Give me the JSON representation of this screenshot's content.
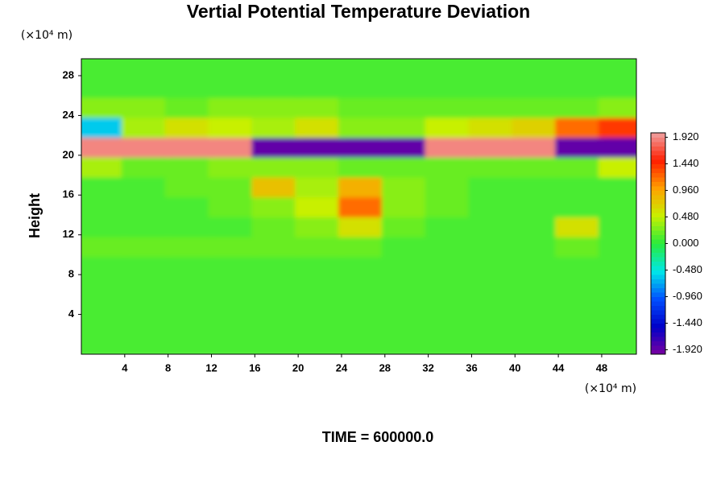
{
  "chart_data": {
    "type": "heatmap",
    "title": "Vertial Potential Temperature Deviation",
    "ylabel": "Height",
    "xunit": "(×10⁴ m)",
    "yunit": "(×10⁴ m)",
    "footer": "TIME = 600000.0",
    "xlim": [
      0,
      51.2
    ],
    "xticks": [
      4,
      8,
      12,
      16,
      20,
      24,
      28,
      32,
      36,
      40,
      44,
      48
    ],
    "ylim": [
      0,
      29.7
    ],
    "yticks": [
      4,
      8,
      12,
      16,
      20,
      24,
      28
    ],
    "x": [
      2,
      6,
      10,
      14,
      18,
      22,
      26,
      30,
      34,
      38,
      42,
      46,
      50
    ],
    "y": [
      1,
      3,
      5,
      7,
      9,
      11,
      13,
      15,
      17,
      19,
      21,
      23,
      25,
      27,
      29
    ],
    "z": [
      [
        0.1,
        0.1,
        0.1,
        0.1,
        0.1,
        0.1,
        0.1,
        0.1,
        0.1,
        0.1,
        0.1,
        0.1,
        0.1
      ],
      [
        0.1,
        0.1,
        0.1,
        0.1,
        0.1,
        0.1,
        0.1,
        0.1,
        0.1,
        0.1,
        0.1,
        0.1,
        0.1
      ],
      [
        0.1,
        0.1,
        0.1,
        0.1,
        0.1,
        0.1,
        0.1,
        0.1,
        0.1,
        0.1,
        0.1,
        0.1,
        0.1
      ],
      [
        0.1,
        0.1,
        0.1,
        0.1,
        0.1,
        0.1,
        0.1,
        0.1,
        0.1,
        0.1,
        0.1,
        0.1,
        0.1
      ],
      [
        0.1,
        0.1,
        0.1,
        0.1,
        0.1,
        0.1,
        0.1,
        0.1,
        0.1,
        0.1,
        0.1,
        0.1,
        0.1
      ],
      [
        0.2,
        0.2,
        0.2,
        0.2,
        0.2,
        0.2,
        0.2,
        0.1,
        0.1,
        0.1,
        0.1,
        0.2,
        0.1
      ],
      [
        0.1,
        0.1,
        0.1,
        0.1,
        0.2,
        0.3,
        0.6,
        0.2,
        0.1,
        0.1,
        0.1,
        0.6,
        0.1
      ],
      [
        0.1,
        0.1,
        0.1,
        0.2,
        0.3,
        0.5,
        1.2,
        0.3,
        0.2,
        0.1,
        0.1,
        0.1,
        0.1
      ],
      [
        0.1,
        0.1,
        0.2,
        0.2,
        0.8,
        0.4,
        0.9,
        0.3,
        0.2,
        0.1,
        0.1,
        0.1,
        0.1
      ],
      [
        0.4,
        0.2,
        0.2,
        0.3,
        0.3,
        0.3,
        0.2,
        0.2,
        0.2,
        0.2,
        0.2,
        0.2,
        0.5
      ],
      [
        1.9,
        1.9,
        1.9,
        1.9,
        -1.9,
        -1.9,
        -1.9,
        -1.9,
        1.9,
        1.9,
        1.9,
        -1.9,
        -1.9
      ],
      [
        -0.6,
        0.4,
        0.6,
        0.5,
        0.4,
        0.6,
        0.3,
        0.3,
        0.5,
        0.6,
        0.7,
        1.2,
        1.4
      ],
      [
        0.3,
        0.3,
        0.2,
        0.3,
        0.3,
        0.3,
        0.2,
        0.2,
        0.2,
        0.2,
        0.2,
        0.2,
        0.3
      ],
      [
        0.1,
        0.1,
        0.1,
        0.1,
        0.1,
        0.1,
        0.1,
        0.1,
        0.1,
        0.1,
        0.1,
        0.1,
        0.1
      ],
      [
        0.1,
        0.1,
        0.1,
        0.1,
        0.1,
        0.1,
        0.1,
        0.1,
        0.1,
        0.1,
        0.1,
        0.1,
        0.1
      ]
    ],
    "clim": [
      -2,
      2
    ],
    "colorbar_ticks": [
      {
        "value": 1.92,
        "label": "1.920"
      },
      {
        "value": 1.44,
        "label": "1.440"
      },
      {
        "value": 0.96,
        "label": "0.960"
      },
      {
        "value": 0.48,
        "label": "0.480"
      },
      {
        "value": 0,
        "label": "0.000"
      },
      {
        "value": -0.48,
        "label": "-0.480"
      },
      {
        "value": -0.96,
        "label": "-0.960"
      },
      {
        "value": -1.44,
        "label": "-1.440"
      },
      {
        "value": -1.92,
        "label": "-1.920"
      }
    ]
  }
}
